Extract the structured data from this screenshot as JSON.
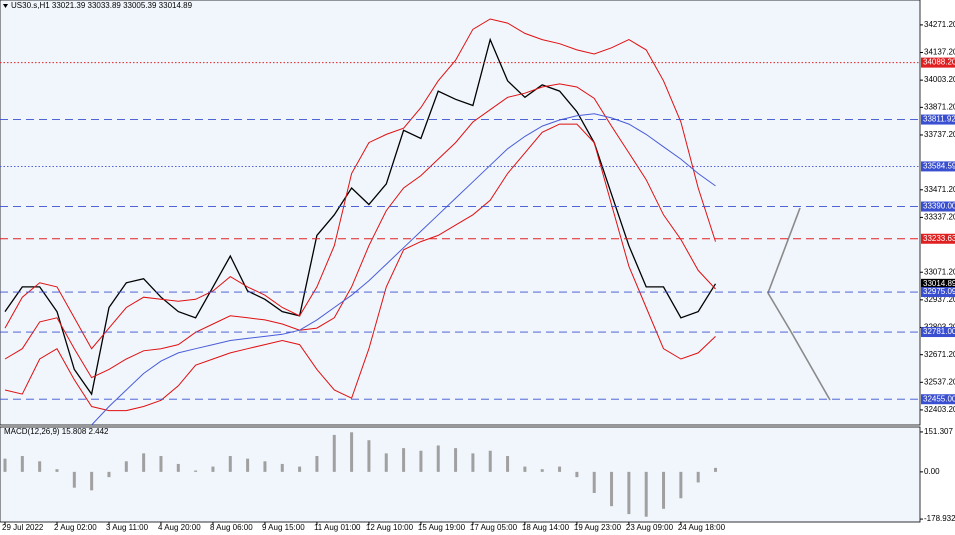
{
  "chart_data": [
    {
      "type": "line",
      "title": "US30.s,H1  33021.39 33033.89 33005.39 33014.89",
      "categories": [
        "29 Jul 2022",
        null,
        null,
        "2 Aug 02:00",
        null,
        null,
        "3 Aug 11:00",
        null,
        null,
        "4 Aug 20:00",
        null,
        null,
        "8 Aug 06:00",
        null,
        null,
        "9 Aug 15:00",
        null,
        null,
        "11 Aug 01:00",
        null,
        null,
        "12 Aug 10:00",
        null,
        null,
        "15 Aug 19:00",
        null,
        null,
        "17 Aug 05:00",
        null,
        null,
        "18 Aug 14:00",
        null,
        null,
        "19 Aug 23:00",
        null,
        null,
        "23 Aug 09:00",
        null,
        null,
        "24 Aug 18:00",
        null,
        null
      ],
      "series": [
        {
          "color": "#000000",
          "values": [
            32880,
            33000,
            33000,
            32880,
            32600,
            32480,
            32900,
            33020,
            33040,
            32950,
            32880,
            32850,
            33000,
            33150,
            32980,
            32940,
            32880,
            32860,
            33250,
            33350,
            33480,
            33400,
            33500,
            33760,
            33720,
            33950,
            33910,
            33880,
            34200,
            34000,
            33920,
            33980,
            33950,
            33850,
            33700,
            33450,
            33200,
            33000,
            33000,
            32850,
            32880,
            33015
          ]
        },
        {
          "color": "#e01010",
          "values": [
            32800,
            32950,
            33020,
            33000,
            32850,
            32700,
            32800,
            32900,
            32950,
            32940,
            32930,
            32940,
            32980,
            33050,
            33000,
            32960,
            32900,
            32860,
            33000,
            33200,
            33550,
            33700,
            33740,
            33770,
            33870,
            34000,
            34100,
            34250,
            34300,
            34280,
            34230,
            34200,
            34180,
            34150,
            34130,
            34160,
            34200,
            34150,
            34000,
            33800,
            33480,
            33220
          ]
        },
        {
          "color": "#e01010",
          "values": [
            32650,
            32700,
            32830,
            32850,
            32700,
            32560,
            32600,
            32650,
            32690,
            32700,
            32720,
            32780,
            32820,
            32860,
            32850,
            32840,
            32820,
            32790,
            32800,
            32850,
            33000,
            33200,
            33370,
            33480,
            33540,
            33620,
            33700,
            33800,
            33860,
            33920,
            33940,
            33970,
            33985,
            33970,
            33915,
            33780,
            33650,
            33520,
            33350,
            33230,
            33080,
            32990
          ]
        },
        {
          "color": "#e01010",
          "values": [
            32500,
            32480,
            32650,
            32700,
            32550,
            32420,
            32400,
            32400,
            32420,
            32450,
            32520,
            32620,
            32650,
            32680,
            32700,
            32720,
            32740,
            32720,
            32600,
            32500,
            32460,
            32700,
            33000,
            33180,
            33220,
            33250,
            33300,
            33350,
            33420,
            33550,
            33650,
            33750,
            33790,
            33790,
            33700,
            33400,
            33100,
            32900,
            32700,
            32650,
            32680,
            32760
          ]
        },
        {
          "color": "#4a5cd8",
          "values": [
            null,
            null,
            null,
            null,
            null,
            32330,
            32420,
            32500,
            32580,
            32640,
            32680,
            32700,
            32720,
            32740,
            32750,
            32760,
            32770,
            32790,
            32840,
            32900,
            32960,
            33030,
            33110,
            33190,
            33270,
            33350,
            33430,
            33510,
            33590,
            33670,
            33730,
            33780,
            33810,
            33830,
            33840,
            33820,
            33790,
            33740,
            33680,
            33620,
            33550,
            33490
          ]
        }
      ],
      "ylim": [
        32330,
        34392
      ],
      "yticks": [
        {
          "value": 32403.2,
          "label": "32403.20"
        },
        {
          "value": 32537.2,
          "label": "32537.20"
        },
        {
          "value": 32671.2,
          "label": "32671.20"
        },
        {
          "value": 32803.2,
          "label": "32803.20"
        },
        {
          "value": 32937.2,
          "label": "32937.20"
        },
        {
          "value": 33071.2,
          "label": "33071.20"
        },
        {
          "value": 33337.2,
          "label": "33337.20"
        },
        {
          "value": 33471.2,
          "label": "33471.20"
        },
        {
          "value": 33737.2,
          "label": "33737.20"
        },
        {
          "value": 33871.2,
          "label": "33871.20"
        },
        {
          "value": 34003.2,
          "label": "34003.20"
        },
        {
          "value": 34137.2,
          "label": "34137.20"
        },
        {
          "value": 34271.2,
          "label": "34271.20"
        }
      ],
      "levels": [
        {
          "value": 34088.2,
          "label": "34088.20",
          "color": "#e02020",
          "style": "dotted"
        },
        {
          "value": 33811.92,
          "label": "33811.92",
          "color": "#3a4fd0",
          "style": "dashed"
        },
        {
          "value": 33584.59,
          "label": "33584.59",
          "color": "#3a4fd0",
          "style": "dotted"
        },
        {
          "value": 33390.0,
          "label": "33390.00",
          "color": "#3a4fd0",
          "style": "dashed"
        },
        {
          "value": 33233.63,
          "label": "33233.63",
          "color": "#e02020",
          "style": "dashed"
        },
        {
          "value": 33014.89,
          "label": "33014.89",
          "color": "#000000",
          "style": "none"
        },
        {
          "value": 32975.09,
          "label": "32975.09",
          "color": "#3a4fd0",
          "style": "dashed"
        },
        {
          "value": 32781.0,
          "label": "32781.00",
          "color": "#3a4fd0",
          "style": "dashed"
        },
        {
          "value": 32455.0,
          "label": "32455.00",
          "color": "#3a4fd0",
          "style": "dashed"
        }
      ]
    },
    {
      "type": "bar",
      "title": "MACD(12,26,9) 15.808 2.442",
      "color": "#a0a0a0",
      "values": [
        50,
        60,
        40,
        10,
        -60,
        -70,
        -20,
        40,
        70,
        60,
        30,
        5,
        20,
        60,
        50,
        40,
        30,
        20,
        60,
        140,
        150,
        120,
        70,
        90,
        80,
        100,
        90,
        70,
        80,
        60,
        20,
        10,
        20,
        -20,
        -80,
        -130,
        -160,
        -170,
        -140,
        -100,
        -40,
        15
      ],
      "ylim": [
        -190,
        170
      ],
      "yticks": [
        -178.932,
        {
          "value": 0,
          "label": "0.00"
        },
        151.307
      ]
    }
  ]
}
